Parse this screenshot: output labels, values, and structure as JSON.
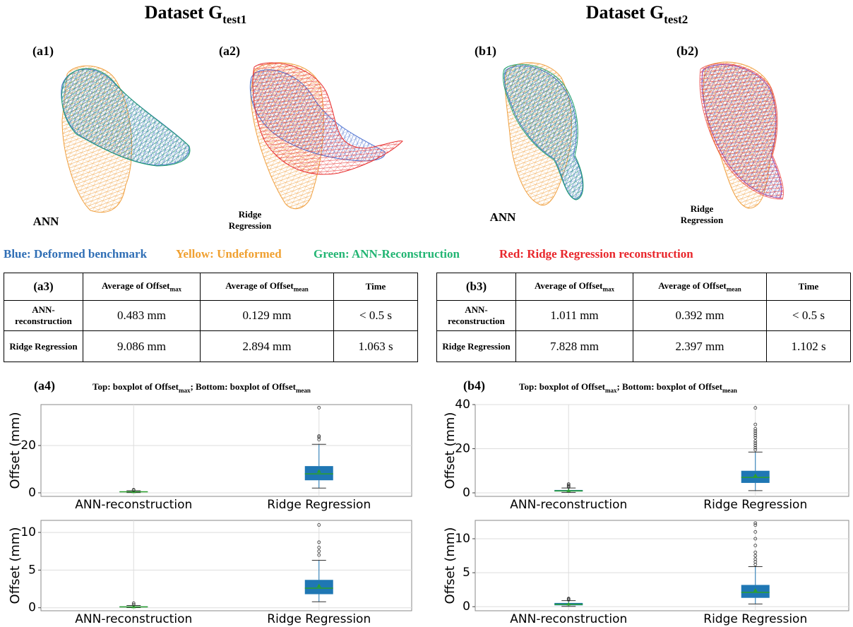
{
  "legend": [
    {
      "text": "Blue: Deformed benchmark",
      "color": "#2f6eb5"
    },
    {
      "text": "Yellow: Undeformed",
      "color": "#f0a030"
    },
    {
      "text": "Green: ANN-Reconstruction",
      "color": "#22b573"
    },
    {
      "text": "Red: Ridge Regression reconstruction",
      "color": "#e8262b"
    }
  ],
  "columns": [
    {
      "title": "Dataset G",
      "title_sub": "test1",
      "panels": [
        {
          "label": "(a1)",
          "method": "ANN"
        },
        {
          "label": "(a2)",
          "method": "Ridge Regression"
        }
      ],
      "table": {
        "corner": "(a3)",
        "header": [
          {
            "text": "Average of Offset",
            "sub": "max"
          },
          {
            "text": "Average of Offset",
            "sub": "mean"
          },
          {
            "text": "Time"
          }
        ],
        "rows": [
          {
            "name": "ANN-reconstruction",
            "cells": [
              "0.483 mm",
              "0.129 mm",
              "< 0.5 s"
            ]
          },
          {
            "name": "Ridge Regression",
            "cells": [
              "9.086 mm",
              "2.894 mm",
              "1.063 s"
            ]
          }
        ]
      },
      "boxplot_label": "(a4)",
      "caption": [
        {
          "text": "Top: boxplot of Offset"
        },
        {
          "sub": "max"
        },
        {
          "text": "; Bottom: boxplot of Offset"
        },
        {
          "sub": "mean"
        }
      ],
      "chart_data": [
        {
          "type": "box",
          "ylabel": "Offset (mm)",
          "categories": [
            "ANN-reconstruction",
            "Ridge Regression"
          ],
          "color": "#1f77b4",
          "median_color": "#2ca02c",
          "ylim": [
            -1.5,
            37.3
          ],
          "yticks": [
            0,
            20
          ],
          "grid": true,
          "boxes": [
            {
              "whislo": 0.1,
              "q1": 0.3,
              "med": 0.45,
              "q3": 0.6,
              "whishi": 0.9,
              "mean": 0.48,
              "fliers": [
                1.1,
                1.3
              ]
            },
            {
              "whislo": 2,
              "q1": 5.3,
              "med": 8,
              "q3": 11.3,
              "whishi": 20.5,
              "mean": 9.1,
              "fliers": [
                22.5,
                23.5,
                24,
                36
              ]
            }
          ]
        },
        {
          "type": "box",
          "ylabel": "Offset (mm)",
          "categories": [
            "ANN-reconstruction",
            "Ridge Regression"
          ],
          "color": "#1f77b4",
          "median_color": "#2ca02c",
          "ylim": [
            -0.4,
            11.6
          ],
          "yticks": [
            0,
            5,
            10
          ],
          "grid": true,
          "boxes": [
            {
              "whislo": 0.02,
              "q1": 0.06,
              "med": 0.12,
              "q3": 0.18,
              "whishi": 0.3,
              "mean": 0.13,
              "fliers": [
                0.4,
                0.6
              ]
            },
            {
              "whislo": 0.8,
              "q1": 1.8,
              "med": 2.6,
              "q3": 3.7,
              "whishi": 6.3,
              "mean": 2.9,
              "fliers": [
                7,
                7.5,
                8,
                8.7,
                11
              ]
            }
          ]
        }
      ]
    },
    {
      "title": "Dataset G",
      "title_sub": "test2",
      "panels": [
        {
          "label": "(b1)",
          "method": "ANN"
        },
        {
          "label": "(b2)",
          "method": "Ridge Regression"
        }
      ],
      "table": {
        "corner": "(b3)",
        "header": [
          {
            "text": "Average of Offset",
            "sub": "max"
          },
          {
            "text": "Average of Offset",
            "sub": "mean"
          },
          {
            "text": "Time"
          }
        ],
        "rows": [
          {
            "name": "ANN-reconstruction",
            "cells": [
              "1.011 mm",
              "0.392 mm",
              "< 0.5 s"
            ]
          },
          {
            "name": "Ridge Regression",
            "cells": [
              "7.828 mm",
              "2.397 mm",
              "1.102 s"
            ]
          }
        ]
      },
      "boxplot_label": "(b4)",
      "caption": [
        {
          "text": "Top: boxplot of Offset"
        },
        {
          "sub": "max"
        },
        {
          "text": "; Bottom: boxplot of Offset"
        },
        {
          "sub": "mean"
        }
      ],
      "chart_data": [
        {
          "type": "box",
          "ylabel": "Offset (mm)",
          "categories": [
            "ANN-reconstruction",
            "Ridge Regression"
          ],
          "color": "#1f77b4",
          "median_color": "#2ca02c",
          "ylim": [
            -1.6,
            40
          ],
          "yticks": [
            0,
            20,
            40
          ],
          "grid": true,
          "boxes": [
            {
              "whislo": 0.2,
              "q1": 0.6,
              "med": 0.9,
              "q3": 1.3,
              "whishi": 2.2,
              "mean": 1.0,
              "fliers": [
                2.6,
                3,
                3.5,
                4
              ]
            },
            {
              "whislo": 1,
              "q1": 4.5,
              "med": 7,
              "q3": 10,
              "whishi": 18.5,
              "mean": 7.8,
              "fliers": [
                19.5,
                20.5,
                21.5,
                22.5,
                23.5,
                25,
                26,
                27,
                28,
                29,
                31,
                38.5
              ]
            }
          ]
        },
        {
          "type": "box",
          "ylabel": "Offset (mm)",
          "categories": [
            "ANN-reconstruction",
            "Ridge Regression"
          ],
          "color": "#1f77b4",
          "median_color": "#2ca02c",
          "ylim": [
            -0.6,
            12.7
          ],
          "yticks": [
            0,
            5,
            10
          ],
          "grid": true,
          "boxes": [
            {
              "whislo": 0.05,
              "q1": 0.2,
              "med": 0.35,
              "q3": 0.55,
              "whishi": 0.9,
              "mean": 0.39,
              "fliers": [
                1,
                1.1,
                1.2
              ]
            },
            {
              "whislo": 0.4,
              "q1": 1.3,
              "med": 2.1,
              "q3": 3.2,
              "whishi": 5.9,
              "mean": 2.4,
              "fliers": [
                6.2,
                6.6,
                7,
                7.5,
                8,
                9,
                10,
                11,
                12,
                12.3
              ]
            }
          ]
        }
      ]
    }
  ]
}
